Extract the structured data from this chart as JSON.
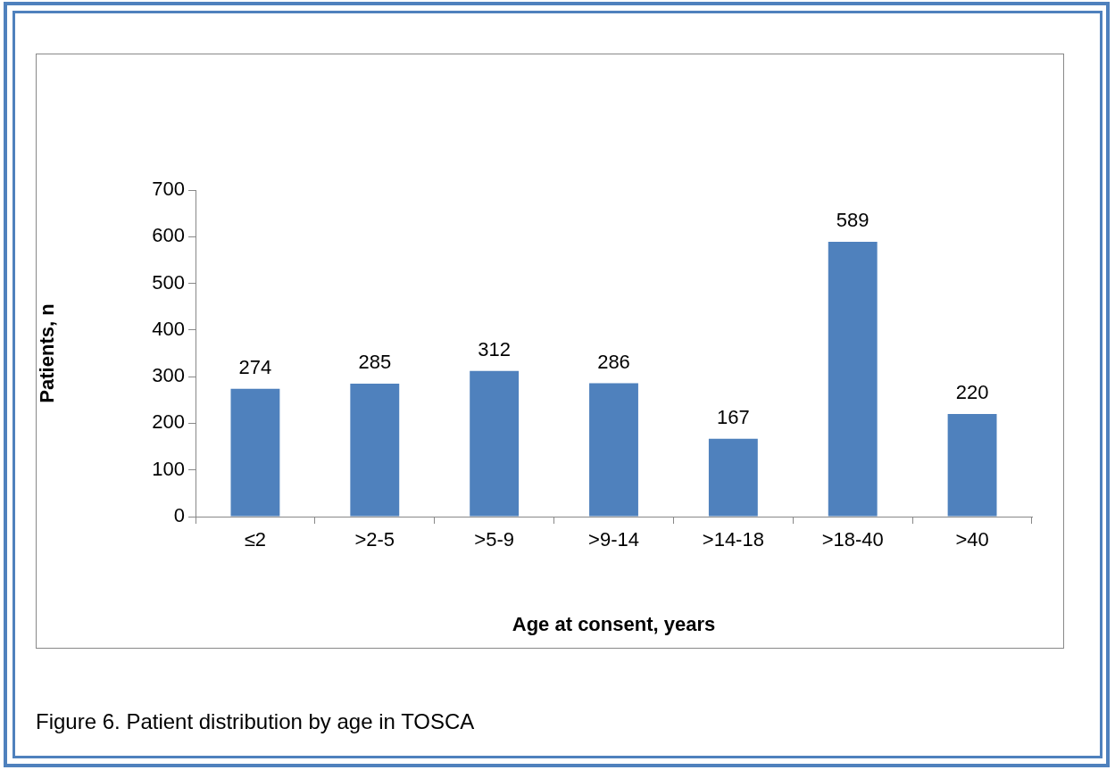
{
  "chart_data": {
    "type": "bar",
    "xlabel": "Age at consent, years",
    "ylabel": "Patients, n",
    "categories": [
      "≤2",
      ">2-5",
      ">5-9",
      ">9-14",
      ">14-18",
      ">18-40",
      ">40"
    ],
    "values": [
      274,
      285,
      312,
      286,
      167,
      589,
      220
    ],
    "color": "#4f81bd",
    "ylim": [
      0,
      700
    ],
    "yticks": [
      0,
      100,
      200,
      300,
      400,
      500,
      600,
      700
    ],
    "grid": false,
    "legend": false,
    "data_labels": true,
    "annotations": [
      "Figure 6. Patient distribution by age in TOSCA"
    ]
  }
}
